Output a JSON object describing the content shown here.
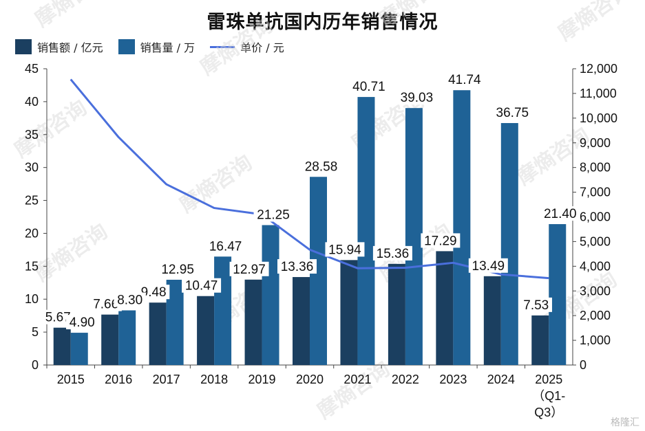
{
  "chart_data": {
    "type": "bar",
    "title": "雷珠单抗国内历年销售情况",
    "categories": [
      "2015",
      "2016",
      "2017",
      "2018",
      "2019",
      "2020",
      "2021",
      "2022",
      "2023",
      "2024",
      "2025（Q1-Q3）"
    ],
    "category_lines": [
      [
        "2015"
      ],
      [
        "2016"
      ],
      [
        "2017"
      ],
      [
        "2018"
      ],
      [
        "2019"
      ],
      [
        "2020"
      ],
      [
        "2021"
      ],
      [
        "2022"
      ],
      [
        "2023"
      ],
      [
        "2024"
      ],
      [
        "2025",
        "（Q1-",
        "Q3）"
      ]
    ],
    "series": [
      {
        "name": "销售额 / 亿元",
        "type": "bar",
        "axis": "left",
        "color": "#1b3f60",
        "values": [
          5.67,
          7.66,
          9.48,
          10.47,
          12.97,
          13.36,
          15.94,
          15.36,
          17.29,
          13.49,
          7.53
        ]
      },
      {
        "name": "销售量 / 万",
        "type": "bar",
        "axis": "left",
        "color": "#1f6296",
        "values": [
          4.9,
          8.3,
          12.95,
          16.47,
          21.25,
          28.58,
          40.71,
          39.03,
          41.74,
          36.75,
          21.4
        ]
      },
      {
        "name": "单价 / 元",
        "type": "line",
        "axis": "right",
        "color": "#4a6fdc",
        "values": [
          11570,
          9230,
          7320,
          6360,
          6100,
          4670,
          3920,
          3940,
          4140,
          3670,
          3520
        ]
      }
    ],
    "value_labels": {
      "sales_amount": [
        "5.67",
        "7.66",
        "9.48",
        "10.47",
        "12.97",
        "13.36",
        "15.94",
        "15.36",
        "17.29",
        "13.49",
        "7.53"
      ],
      "sales_volume": [
        "4.90",
        "8.30",
        "12.95",
        "16.47",
        "21.25",
        "28.58",
        "40.71",
        "39.03",
        "41.74",
        "36.75",
        "21.40"
      ]
    },
    "y_left": {
      "ylim": [
        0,
        45
      ],
      "ticks": [
        "0",
        "5",
        "10",
        "15",
        "20",
        "25",
        "30",
        "35",
        "40",
        "45"
      ]
    },
    "y_right": {
      "ylim": [
        0,
        12000
      ],
      "ticks": [
        "0",
        "1,000",
        "2,000",
        "3,000",
        "4,000",
        "5,000",
        "6,000",
        "7,000",
        "8,000",
        "9,000",
        "10,000",
        "11,000",
        "12,000"
      ]
    },
    "legend_position": "top-left",
    "grid": false
  },
  "watermark": {
    "text": "摩熵咨询"
  },
  "corner_brand": "格隆汇"
}
